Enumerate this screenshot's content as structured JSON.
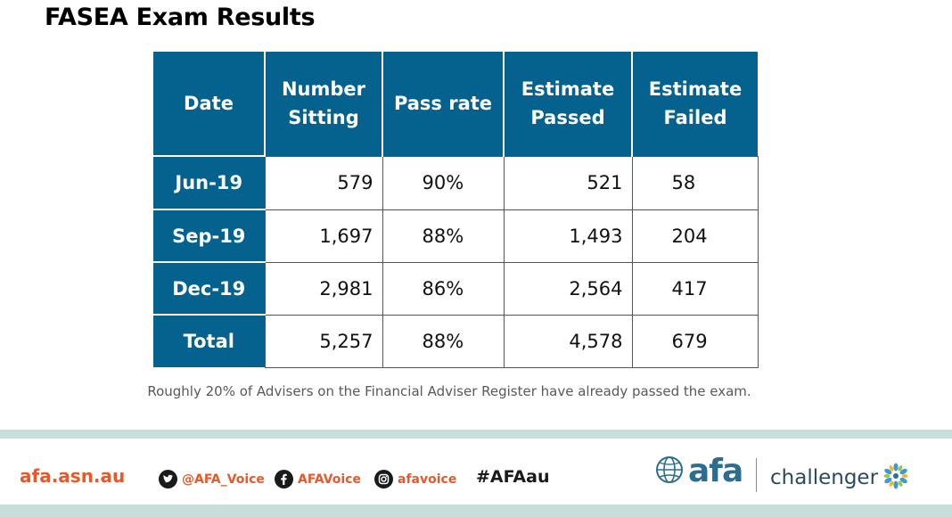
{
  "title": "FASEA Exam Results",
  "table": {
    "headers": {
      "date": "Date",
      "number_sitting_line1": "Number",
      "number_sitting_line2": "Sitting",
      "pass_rate": "Pass rate",
      "estimate_passed_line1": "Estimate",
      "estimate_passed_line2": "Passed",
      "estimate_failed_line1": "Estimate",
      "estimate_failed_line2": "Failed"
    },
    "rows": [
      {
        "date": "Jun-19",
        "number_sitting": "579",
        "pass_rate": "90%",
        "estimate_passed": "521",
        "estimate_failed": "58"
      },
      {
        "date": "Sep-19",
        "number_sitting": "1,697",
        "pass_rate": "88%",
        "estimate_passed": "1,493",
        "estimate_failed": "204"
      },
      {
        "date": "Dec-19",
        "number_sitting": "2,981",
        "pass_rate": "86%",
        "estimate_passed": "2,564",
        "estimate_failed": "417"
      },
      {
        "date": "Total",
        "number_sitting": "5,257",
        "pass_rate": "88%",
        "estimate_passed": "4,578",
        "estimate_failed": "679"
      }
    ]
  },
  "footnote": "Roughly 20% of Advisers on the Financial Adviser Register have already passed the exam.",
  "footer": {
    "website": "afa.asn.au",
    "twitter": "@AFA_Voice",
    "facebook": "AFAVoice",
    "instagram": "afavoice",
    "hashtag": "#AFAau",
    "afa_logo_text": "afa",
    "partner_logo_text": "challenger"
  },
  "colors": {
    "header_blue": "#05628f",
    "accent_orange": "#e8582a",
    "band": "#c9dedb"
  },
  "icons": [
    "twitter-icon",
    "facebook-icon",
    "instagram-icon",
    "globe-icon",
    "challenger-star-icon"
  ]
}
